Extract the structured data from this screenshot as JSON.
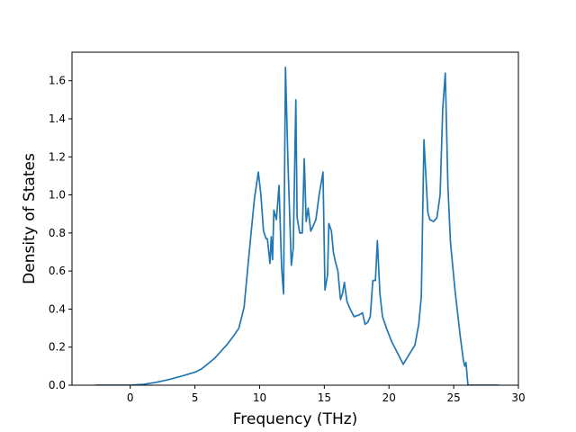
{
  "chart_data": {
    "type": "line",
    "title": "",
    "xlabel": "Frequency (THz)",
    "ylabel": "Density of States",
    "xlim": [
      -4.5,
      30
    ],
    "ylim": [
      0,
      1.75
    ],
    "xticks": [
      0,
      5,
      10,
      15,
      20,
      25,
      30
    ],
    "yticks": [
      0.0,
      0.2,
      0.4,
      0.6,
      0.8,
      1.0,
      1.2,
      1.4,
      1.6
    ],
    "xtick_labels": [
      "0",
      "5",
      "10",
      "15",
      "20",
      "25",
      "30"
    ],
    "ytick_labels": [
      "0.0",
      "0.2",
      "0.4",
      "0.6",
      "0.8",
      "1.0",
      "1.2",
      "1.4",
      "1.6"
    ],
    "grid": false,
    "series": [
      {
        "color": "#1f77b4",
        "x": [
          -2.7,
          0.0,
          1.0,
          2.0,
          3.0,
          4.0,
          5.0,
          5.5,
          6.5,
          7.5,
          8.0,
          8.4,
          8.8,
          9.2,
          9.6,
          9.9,
          10.1,
          10.3,
          10.5,
          10.6,
          10.8,
          10.9,
          11.0,
          11.1,
          11.3,
          11.5,
          11.7,
          11.85,
          12.0,
          12.2,
          12.45,
          12.6,
          12.8,
          12.9,
          13.1,
          13.3,
          13.45,
          13.6,
          13.75,
          13.95,
          14.1,
          14.35,
          14.6,
          14.9,
          15.05,
          15.25,
          15.35,
          15.55,
          15.7,
          15.85,
          16.05,
          16.25,
          16.4,
          16.55,
          16.75,
          17.0,
          17.3,
          17.7,
          17.95,
          18.15,
          18.35,
          18.55,
          18.75,
          18.95,
          19.1,
          19.3,
          19.5,
          19.8,
          20.2,
          20.8,
          21.1,
          21.5,
          22.0,
          22.3,
          22.5,
          22.7,
          22.85,
          23.0,
          23.15,
          23.45,
          23.7,
          23.95,
          24.15,
          24.35,
          24.55,
          24.75,
          25.1,
          25.5,
          25.75,
          25.85,
          25.95,
          26.1,
          28.5
        ],
        "y": [
          0.0,
          0.0,
          0.004,
          0.015,
          0.03,
          0.048,
          0.068,
          0.085,
          0.14,
          0.215,
          0.26,
          0.3,
          0.41,
          0.7,
          0.98,
          1.12,
          1.0,
          0.81,
          0.77,
          0.77,
          0.64,
          0.78,
          0.66,
          0.92,
          0.87,
          1.05,
          0.62,
          0.48,
          1.67,
          1.15,
          0.63,
          0.72,
          1.5,
          0.88,
          0.8,
          0.8,
          1.19,
          0.86,
          0.93,
          0.81,
          0.83,
          0.87,
          1.0,
          1.12,
          0.5,
          0.58,
          0.85,
          0.81,
          0.7,
          0.65,
          0.6,
          0.45,
          0.48,
          0.54,
          0.44,
          0.4,
          0.36,
          0.37,
          0.38,
          0.32,
          0.33,
          0.36,
          0.55,
          0.55,
          0.76,
          0.48,
          0.36,
          0.3,
          0.23,
          0.15,
          0.11,
          0.155,
          0.21,
          0.32,
          0.47,
          1.29,
          1.1,
          0.91,
          0.87,
          0.86,
          0.88,
          1.0,
          1.45,
          1.64,
          1.05,
          0.75,
          0.5,
          0.26,
          0.13,
          0.1,
          0.12,
          0.0,
          0.0
        ]
      }
    ]
  }
}
